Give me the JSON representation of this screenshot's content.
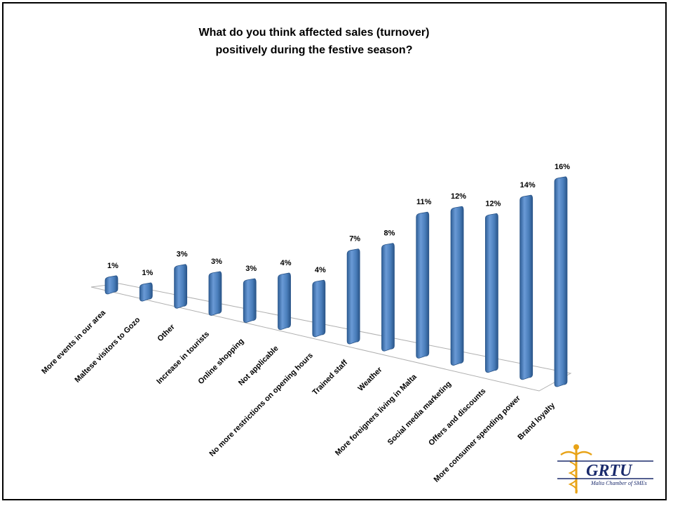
{
  "chart_data": {
    "type": "bar",
    "title": [
      "What do you think affected sales (turnover)",
      "positively during the festive season?"
    ],
    "categories": [
      "More events in our area",
      "Maltese visitors to Gozo",
      "Other",
      "Increase in tourists",
      "Online shopping",
      "Not applicable",
      "No more restrictions on opening hours",
      "Trained staff",
      "Weather",
      "More foreigners living in Malta",
      "Social media marketing",
      "Offers and discounts",
      "More consumer spending power",
      "Brand loyalty"
    ],
    "values": [
      1,
      1,
      3,
      3,
      3,
      4,
      4,
      7,
      8,
      11,
      12,
      12,
      14,
      16
    ],
    "value_labels": [
      "1%",
      "1%",
      "3%",
      "3%",
      "3%",
      "4%",
      "4%",
      "7%",
      "8%",
      "11%",
      "12%",
      "12%",
      "14%",
      "16%"
    ],
    "unit": "%",
    "grid": false,
    "legend": "none",
    "colors": {
      "bar": "#4a7ebb",
      "bar_light": "#7aa6dd",
      "bar_dark": "#2f5f97"
    }
  },
  "logo": {
    "name": "GRTU",
    "subtitle": "Malta Chamber of SMEs",
    "icon": "caduceus-icon",
    "colors": {
      "primary": "#1a2a6c",
      "accent": "#e8a317"
    }
  }
}
